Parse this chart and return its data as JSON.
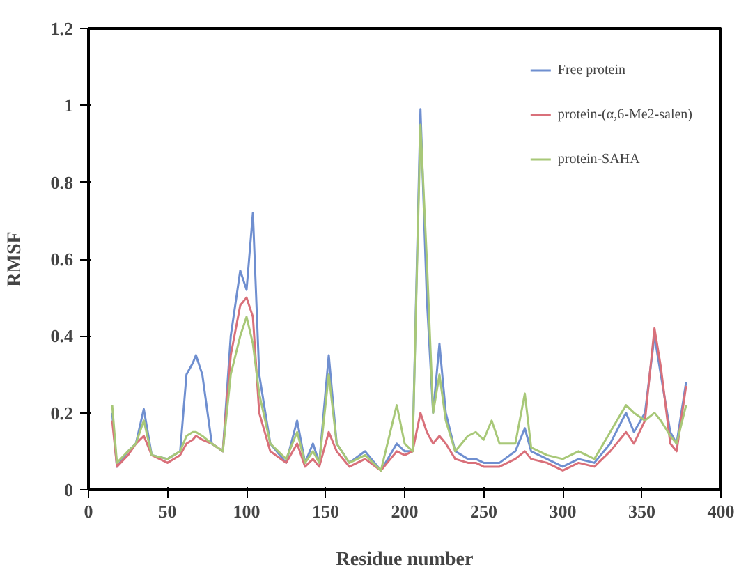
{
  "chart_data": {
    "type": "line",
    "xlabel": "Residue number",
    "ylabel": "RMSF",
    "x": [
      15,
      18,
      25,
      30,
      35,
      40,
      50,
      58,
      62,
      66,
      68,
      72,
      78,
      85,
      90,
      96,
      100,
      104,
      108,
      115,
      125,
      132,
      137,
      142,
      146,
      152,
      157,
      165,
      175,
      185,
      195,
      200,
      205,
      210,
      214,
      218,
      222,
      226,
      232,
      240,
      245,
      250,
      255,
      260,
      270,
      276,
      280,
      290,
      300,
      310,
      320,
      330,
      340,
      345,
      352,
      358,
      362,
      368,
      372,
      378
    ],
    "series": [
      {
        "name": "Free protein",
        "color": "#6f8fd0",
        "values": [
          0.2,
          0.06,
          0.1,
          0.12,
          0.21,
          0.09,
          0.08,
          0.1,
          0.3,
          0.33,
          0.35,
          0.3,
          0.12,
          0.1,
          0.4,
          0.57,
          0.52,
          0.72,
          0.3,
          0.12,
          0.07,
          0.18,
          0.07,
          0.12,
          0.07,
          0.35,
          0.12,
          0.07,
          0.1,
          0.05,
          0.12,
          0.1,
          0.1,
          0.99,
          0.5,
          0.2,
          0.38,
          0.2,
          0.1,
          0.08,
          0.08,
          0.07,
          0.07,
          0.07,
          0.1,
          0.16,
          0.1,
          0.08,
          0.06,
          0.08,
          0.07,
          0.12,
          0.2,
          0.15,
          0.2,
          0.4,
          0.3,
          0.15,
          0.12,
          0.28
        ]
      },
      {
        "name": "protein-(α,6-Me2-salen)",
        "color": "#d9707a",
        "values": [
          0.18,
          0.06,
          0.09,
          0.12,
          0.14,
          0.09,
          0.07,
          0.09,
          0.12,
          0.13,
          0.14,
          0.13,
          0.12,
          0.1,
          0.35,
          0.48,
          0.5,
          0.45,
          0.2,
          0.1,
          0.07,
          0.12,
          0.06,
          0.08,
          0.06,
          0.15,
          0.1,
          0.06,
          0.08,
          0.05,
          0.1,
          0.09,
          0.1,
          0.2,
          0.15,
          0.12,
          0.14,
          0.12,
          0.08,
          0.07,
          0.07,
          0.06,
          0.06,
          0.06,
          0.08,
          0.1,
          0.08,
          0.07,
          0.05,
          0.07,
          0.06,
          0.1,
          0.15,
          0.12,
          0.18,
          0.42,
          0.32,
          0.12,
          0.1,
          0.27
        ]
      },
      {
        "name": "protein-SAHA",
        "color": "#a8c878",
        "values": [
          0.22,
          0.07,
          0.1,
          0.12,
          0.18,
          0.09,
          0.08,
          0.1,
          0.14,
          0.15,
          0.15,
          0.14,
          0.12,
          0.1,
          0.3,
          0.4,
          0.45,
          0.38,
          0.25,
          0.12,
          0.08,
          0.15,
          0.07,
          0.1,
          0.07,
          0.3,
          0.12,
          0.07,
          0.09,
          0.05,
          0.22,
          0.12,
          0.1,
          0.95,
          0.6,
          0.2,
          0.3,
          0.18,
          0.1,
          0.14,
          0.15,
          0.13,
          0.18,
          0.12,
          0.12,
          0.25,
          0.11,
          0.09,
          0.08,
          0.1,
          0.08,
          0.15,
          0.22,
          0.2,
          0.18,
          0.2,
          0.18,
          0.14,
          0.12,
          0.22
        ]
      }
    ],
    "xlim": [
      0,
      400
    ],
    "xticks": [
      0,
      50,
      100,
      150,
      200,
      250,
      300,
      350,
      400
    ],
    "ylim": [
      0,
      1.2
    ],
    "yticks": [
      0,
      {
        "value": 0.2,
        "label": "0.2"
      },
      {
        "value": 0.4,
        "label": "0.4"
      },
      {
        "value": 0.6,
        "label": "0.6"
      },
      {
        "value": 0.8,
        "label": "0.8"
      },
      1,
      {
        "value": 1.2,
        "label": "1.2"
      }
    ],
    "grid": false,
    "legend": "top right",
    "marker": "none",
    "line_style": "solid"
  }
}
